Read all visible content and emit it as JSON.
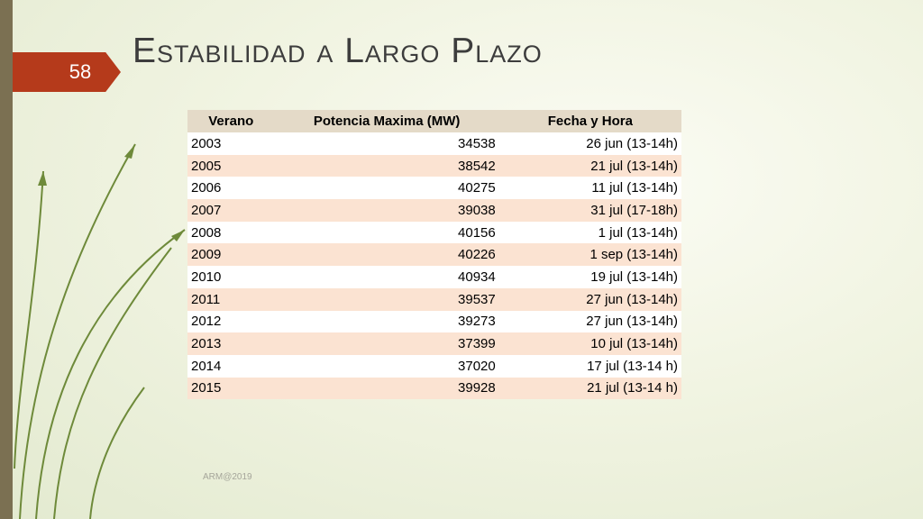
{
  "slide": {
    "title": "Estabilidad a Largo Plazo",
    "number": "58",
    "footer": "ARM@2019"
  },
  "colors": {
    "left_bar": "#7b7052",
    "number_tab": "#b53a1b",
    "header_bg": "#e4dac8",
    "row_alt_bg": "#fbe3d2",
    "decoration_green": "#6e8a3a"
  },
  "table": {
    "headers": [
      "Verano",
      "Potencia Maxima (MW)",
      "Fecha y Hora"
    ],
    "rows": [
      [
        "2003",
        "34538",
        "26 jun (13-14h)"
      ],
      [
        "2005",
        "38542",
        "21 jul (13-14h)"
      ],
      [
        "2006",
        "40275",
        "11 jul (13-14h)"
      ],
      [
        "2007",
        "39038",
        "31 jul (17-18h)"
      ],
      [
        "2008",
        "40156",
        "1 jul (13-14h)"
      ],
      [
        "2009",
        "40226",
        "1 sep (13-14h)"
      ],
      [
        "2010",
        "40934",
        "19 jul (13-14h)"
      ],
      [
        "2011",
        "39537",
        "27 jun (13-14h)"
      ],
      [
        "2012",
        "39273",
        "27 jun (13-14h)"
      ],
      [
        "2013",
        "37399",
        "10 jul (13-14h)"
      ],
      [
        "2014",
        "37020",
        "17 jul (13-14 h)"
      ],
      [
        "2015",
        "39928",
        "21 jul (13-14 h)"
      ]
    ]
  }
}
